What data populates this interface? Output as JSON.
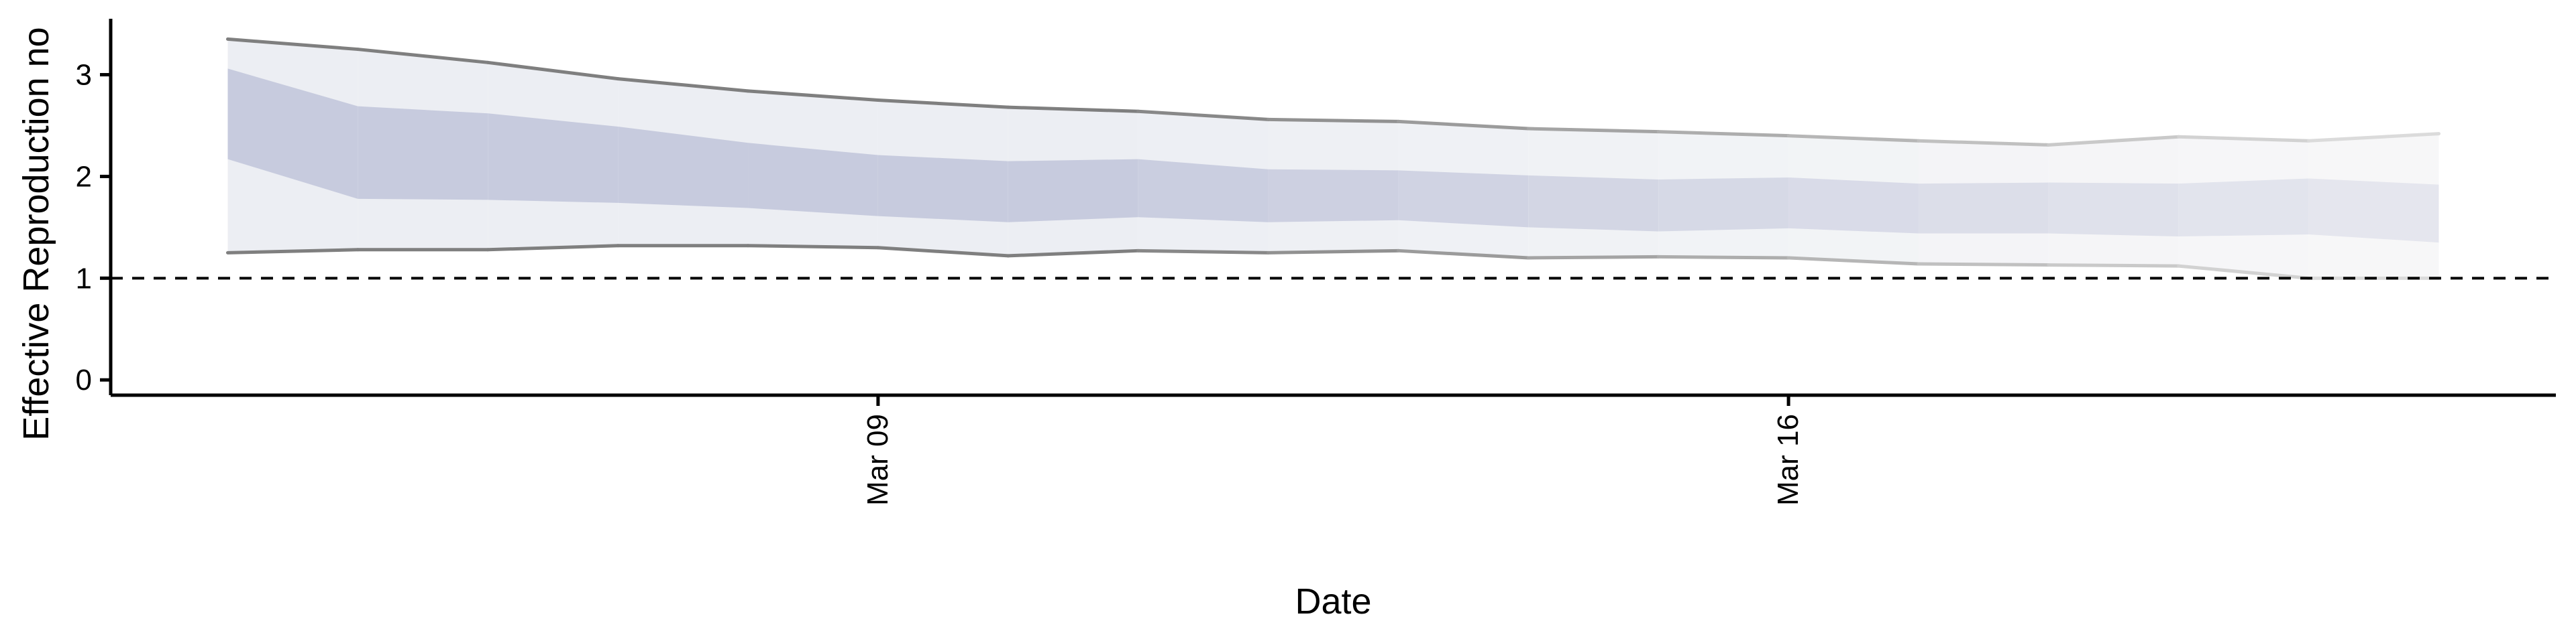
{
  "chart_data": {
    "type": "area",
    "title": "",
    "xlabel": "Date",
    "ylabel": "Effective Reproduction no",
    "x_tick_labels": [
      {
        "day": 9,
        "label": "Mar 09"
      },
      {
        "day": 16,
        "label": "Mar 16"
      }
    ],
    "y_ticks": [
      0,
      1,
      2,
      3
    ],
    "ylim": [
      -0.15,
      3.55
    ],
    "xlim": [
      3.1,
      21.9
    ],
    "reference_line": {
      "y": 1,
      "style": "dashed",
      "color": "#000000"
    },
    "days": [
      4,
      5,
      6,
      7,
      8,
      9,
      10,
      11,
      12,
      13,
      14,
      15,
      16,
      17,
      18,
      19,
      20,
      21
    ],
    "series": [
      {
        "band": "outer",
        "lower": [
          1.25,
          1.28,
          1.28,
          1.32,
          1.32,
          1.3,
          1.22,
          1.27,
          1.25,
          1.27,
          1.2,
          1.21,
          1.2,
          1.14,
          1.13,
          1.12,
          1.0,
          1.0
        ],
        "upper": [
          3.35,
          3.25,
          3.12,
          2.96,
          2.84,
          2.75,
          2.68,
          2.64,
          2.56,
          2.54,
          2.47,
          2.44,
          2.4,
          2.35,
          2.31,
          2.39,
          2.35,
          2.42
        ]
      },
      {
        "band": "inner",
        "lower": [
          2.17,
          1.78,
          1.77,
          1.74,
          1.69,
          1.61,
          1.55,
          1.6,
          1.55,
          1.57,
          1.5,
          1.46,
          1.49,
          1.44,
          1.44,
          1.41,
          1.43,
          1.35
        ],
        "upper": [
          3.06,
          2.69,
          2.62,
          2.49,
          2.33,
          2.21,
          2.15,
          2.17,
          2.07,
          2.06,
          2.01,
          1.97,
          1.99,
          1.93,
          1.94,
          1.93,
          1.98,
          1.92
        ]
      }
    ],
    "colors": {
      "inner_band": "#c7cbde",
      "outer_band": "#eceef3",
      "outline": "#7f7f7f",
      "fade_to": "#fafafa"
    }
  }
}
